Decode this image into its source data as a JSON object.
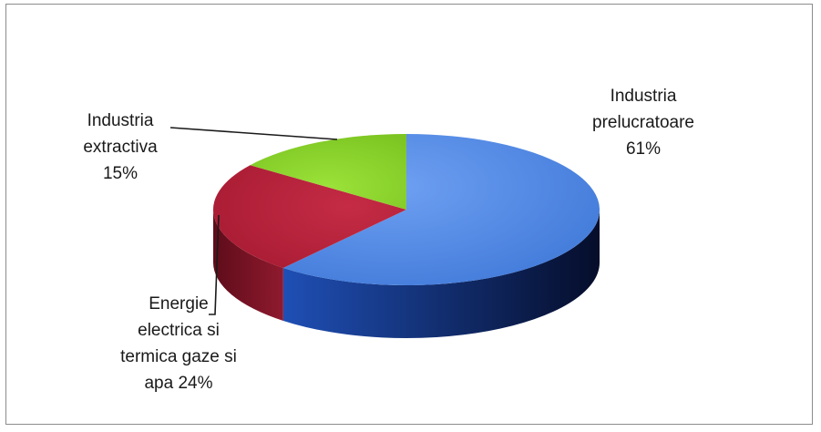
{
  "chart_data": {
    "type": "pie",
    "style": "3d",
    "categories": [
      "Industria prelucratoare",
      "Energie electrica si termica gaze si apa",
      "Industria extractiva"
    ],
    "values": [
      61,
      24,
      15
    ],
    "unit": "%",
    "colors": [
      "#4f88e6",
      "#b8213a",
      "#8fd42e"
    ],
    "side_colors": [
      "#0f3a9a",
      "#6e0f20",
      "#4e8a12"
    ],
    "labels": [
      {
        "lines": [
          "Industria",
          "prelucratoare",
          "61%"
        ]
      },
      {
        "lines": [
          "Energie",
          "electrica si",
          "termica gaze si",
          "apa 24%"
        ]
      },
      {
        "lines": [
          "Industria",
          "extractiva",
          "15%"
        ]
      }
    ],
    "title": "",
    "legend": "none"
  }
}
